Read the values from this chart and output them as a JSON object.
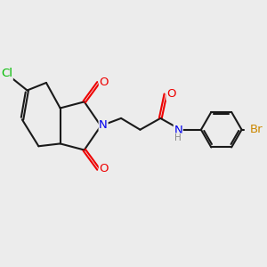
{
  "background_color": "#ececec",
  "bond_color": "#1a1a1a",
  "atom_colors": {
    "Cl": "#00bb00",
    "N": "#0000ee",
    "O": "#ee0000",
    "Br": "#cc8800",
    "H": "#888888"
  },
  "figsize": [
    3.0,
    3.0
  ],
  "dpi": 100
}
